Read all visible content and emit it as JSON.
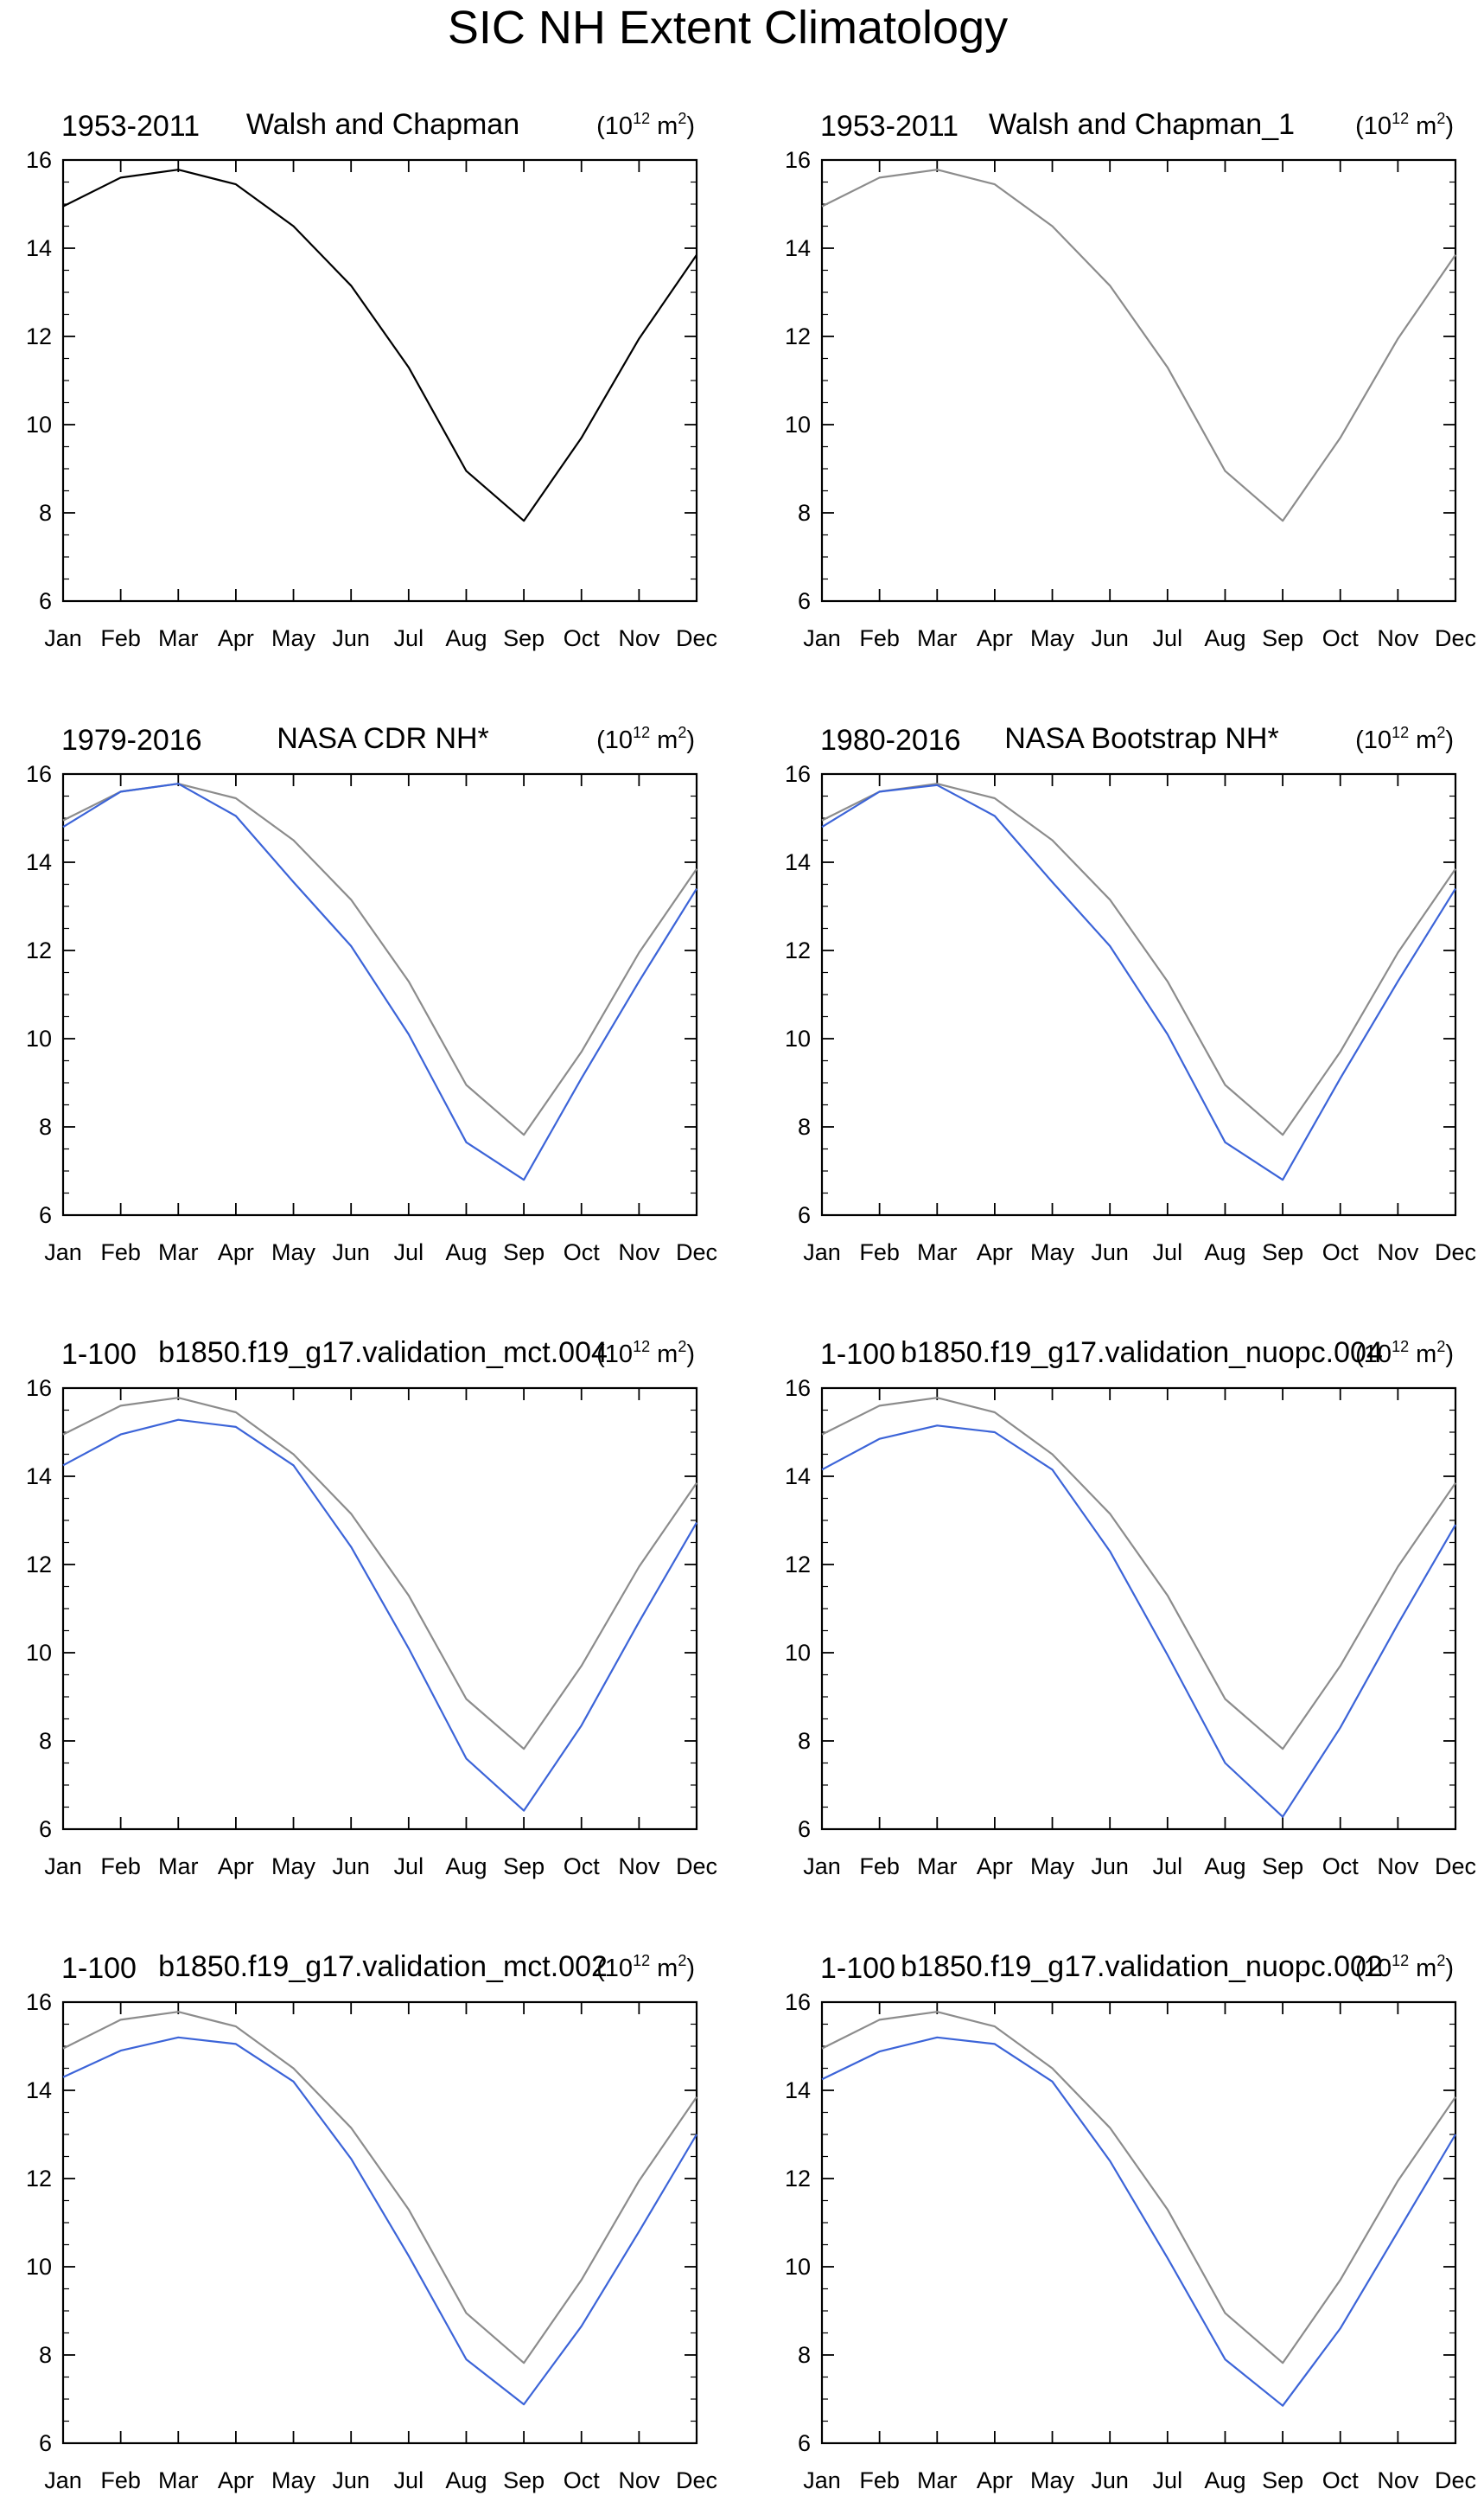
{
  "page_title": "SIC NH Extent Climatology",
  "colors": {
    "ref_line": "#8c8c8c",
    "black_line": "#000000",
    "model_line": "#3c64d8"
  },
  "chart_data": [
    {
      "type": "line",
      "period": "1953-2011",
      "title": "Walsh and Chapman",
      "units": {
        "base": "(10",
        "exp": "12",
        "unit": " m",
        "unit_exp": "2",
        "close": ")"
      },
      "categories": [
        "Jan",
        "Feb",
        "Mar",
        "Apr",
        "May",
        "Jun",
        "Jul",
        "Aug",
        "Sep",
        "Oct",
        "Nov",
        "Dec"
      ],
      "ylim": [
        6,
        16
      ],
      "yticks": [
        "6",
        "8",
        "10",
        "12",
        "14",
        "16"
      ],
      "series": [
        {
          "name": "Walsh and Chapman",
          "color": "#000000",
          "values": [
            14.95,
            15.6,
            15.78,
            15.45,
            14.5,
            13.15,
            11.3,
            8.95,
            7.82,
            9.7,
            11.95,
            13.85
          ]
        }
      ]
    },
    {
      "type": "line",
      "period": "1953-2011",
      "title": "Walsh and Chapman_1",
      "units": {
        "base": "(10",
        "exp": "12",
        "unit": " m",
        "unit_exp": "2",
        "close": ")"
      },
      "categories": [
        "Jan",
        "Feb",
        "Mar",
        "Apr",
        "May",
        "Jun",
        "Jul",
        "Aug",
        "Sep",
        "Oct",
        "Nov",
        "Dec"
      ],
      "ylim": [
        6,
        16
      ],
      "yticks": [
        "6",
        "8",
        "10",
        "12",
        "14",
        "16"
      ],
      "series": [
        {
          "name": "Walsh and Chapman_1",
          "color": "#8c8c8c",
          "values": [
            14.95,
            15.6,
            15.78,
            15.45,
            14.5,
            13.15,
            11.3,
            8.95,
            7.82,
            9.7,
            11.95,
            13.85
          ]
        }
      ]
    },
    {
      "type": "line",
      "period": "1979-2016",
      "title": "NASA CDR NH*",
      "units": {
        "base": "(10",
        "exp": "12",
        "unit": " m",
        "unit_exp": "2",
        "close": ")"
      },
      "categories": [
        "Jan",
        "Feb",
        "Mar",
        "Apr",
        "May",
        "Jun",
        "Jul",
        "Aug",
        "Sep",
        "Oct",
        "Nov",
        "Dec"
      ],
      "ylim": [
        6,
        16
      ],
      "yticks": [
        "6",
        "8",
        "10",
        "12",
        "14",
        "16"
      ],
      "series": [
        {
          "name": "Walsh and Chapman",
          "color": "#8c8c8c",
          "values": [
            14.95,
            15.6,
            15.78,
            15.45,
            14.5,
            13.15,
            11.3,
            8.95,
            7.82,
            9.7,
            11.95,
            13.85
          ]
        },
        {
          "name": "NASA CDR NH*",
          "color": "#3c64d8",
          "values": [
            14.8,
            15.6,
            15.78,
            15.05,
            13.55,
            12.1,
            10.1,
            7.65,
            6.8,
            9.1,
            11.3,
            13.4
          ]
        }
      ]
    },
    {
      "type": "line",
      "period": "1980-2016",
      "title": "NASA Bootstrap NH*",
      "units": {
        "base": "(10",
        "exp": "12",
        "unit": " m",
        "unit_exp": "2",
        "close": ")"
      },
      "categories": [
        "Jan",
        "Feb",
        "Mar",
        "Apr",
        "May",
        "Jun",
        "Jul",
        "Aug",
        "Sep",
        "Oct",
        "Nov",
        "Dec"
      ],
      "ylim": [
        6,
        16
      ],
      "yticks": [
        "6",
        "8",
        "10",
        "12",
        "14",
        "16"
      ],
      "series": [
        {
          "name": "Walsh and Chapman",
          "color": "#8c8c8c",
          "values": [
            14.95,
            15.6,
            15.78,
            15.45,
            14.5,
            13.15,
            11.3,
            8.95,
            7.82,
            9.7,
            11.95,
            13.85
          ]
        },
        {
          "name": "NASA Bootstrap NH*",
          "color": "#3c64d8",
          "values": [
            14.8,
            15.6,
            15.75,
            15.05,
            13.55,
            12.1,
            10.1,
            7.65,
            6.8,
            9.1,
            11.3,
            13.4
          ]
        }
      ]
    },
    {
      "type": "line",
      "period": "1-100",
      "title": "b1850.f19_g17.validation_mct.004",
      "units": {
        "base": "(10",
        "exp": "12",
        "unit": " m",
        "unit_exp": "2",
        "close": ")"
      },
      "categories": [
        "Jan",
        "Feb",
        "Mar",
        "Apr",
        "May",
        "Jun",
        "Jul",
        "Aug",
        "Sep",
        "Oct",
        "Nov",
        "Dec"
      ],
      "ylim": [
        6,
        16
      ],
      "yticks": [
        "6",
        "8",
        "10",
        "12",
        "14",
        "16"
      ],
      "series": [
        {
          "name": "Walsh and Chapman",
          "color": "#8c8c8c",
          "values": [
            14.95,
            15.6,
            15.78,
            15.45,
            14.5,
            13.15,
            11.3,
            8.95,
            7.82,
            9.7,
            11.95,
            13.85
          ]
        },
        {
          "name": "b1850.f19_g17.validation_mct.004",
          "color": "#3c64d8",
          "values": [
            14.25,
            14.95,
            15.28,
            15.12,
            14.25,
            12.4,
            10.1,
            7.6,
            6.42,
            8.35,
            10.7,
            12.95
          ]
        }
      ]
    },
    {
      "type": "line",
      "period": "1-100",
      "title": "b1850.f19_g17.validation_nuopc.004",
      "units": {
        "base": "(10",
        "exp": "12",
        "unit": " m",
        "unit_exp": "2",
        "close": ")"
      },
      "categories": [
        "Jan",
        "Feb",
        "Mar",
        "Apr",
        "May",
        "Jun",
        "Jul",
        "Aug",
        "Sep",
        "Oct",
        "Nov",
        "Dec"
      ],
      "ylim": [
        6,
        16
      ],
      "yticks": [
        "6",
        "8",
        "10",
        "12",
        "14",
        "16"
      ],
      "series": [
        {
          "name": "Walsh and Chapman",
          "color": "#8c8c8c",
          "values": [
            14.95,
            15.6,
            15.78,
            15.45,
            14.5,
            13.15,
            11.3,
            8.95,
            7.82,
            9.7,
            11.95,
            13.85
          ]
        },
        {
          "name": "b1850.f19_g17.validation_nuopc.004",
          "color": "#3c64d8",
          "values": [
            14.15,
            14.85,
            15.15,
            15.0,
            14.15,
            12.3,
            9.95,
            7.5,
            6.28,
            8.3,
            10.65,
            12.9
          ]
        }
      ]
    },
    {
      "type": "line",
      "period": "1-100",
      "title": "b1850.f19_g17.validation_mct.002",
      "units": {
        "base": "(10",
        "exp": "12",
        "unit": " m",
        "unit_exp": "2",
        "close": ")"
      },
      "categories": [
        "Jan",
        "Feb",
        "Mar",
        "Apr",
        "May",
        "Jun",
        "Jul",
        "Aug",
        "Sep",
        "Oct",
        "Nov",
        "Dec"
      ],
      "ylim": [
        6,
        16
      ],
      "yticks": [
        "6",
        "8",
        "10",
        "12",
        "14",
        "16"
      ],
      "series": [
        {
          "name": "Walsh and Chapman",
          "color": "#8c8c8c",
          "values": [
            14.95,
            15.6,
            15.78,
            15.45,
            14.5,
            13.15,
            11.3,
            8.95,
            7.82,
            9.7,
            11.95,
            13.85
          ]
        },
        {
          "name": "b1850.f19_g17.validation_mct.002",
          "color": "#3c64d8",
          "values": [
            14.3,
            14.9,
            15.2,
            15.05,
            14.2,
            12.45,
            10.25,
            7.9,
            6.88,
            8.65,
            10.8,
            13.0
          ]
        }
      ]
    },
    {
      "type": "line",
      "period": "1-100",
      "title": "b1850.f19_g17.validation_nuopc.002",
      "units": {
        "base": "(10",
        "exp": "12",
        "unit": " m",
        "unit_exp": "2",
        "close": ")"
      },
      "categories": [
        "Jan",
        "Feb",
        "Mar",
        "Apr",
        "May",
        "Jun",
        "Jul",
        "Aug",
        "Sep",
        "Oct",
        "Nov",
        "Dec"
      ],
      "ylim": [
        6,
        16
      ],
      "yticks": [
        "6",
        "8",
        "10",
        "12",
        "14",
        "16"
      ],
      "series": [
        {
          "name": "Walsh and Chapman",
          "color": "#8c8c8c",
          "values": [
            14.95,
            15.6,
            15.78,
            15.45,
            14.5,
            13.15,
            11.3,
            8.95,
            7.82,
            9.7,
            11.95,
            13.85
          ]
        },
        {
          "name": "b1850.f19_g17.validation_nuopc.002",
          "color": "#3c64d8",
          "values": [
            14.25,
            14.88,
            15.2,
            15.05,
            14.2,
            12.4,
            10.2,
            7.9,
            6.85,
            8.6,
            10.8,
            13.0
          ]
        }
      ]
    }
  ]
}
